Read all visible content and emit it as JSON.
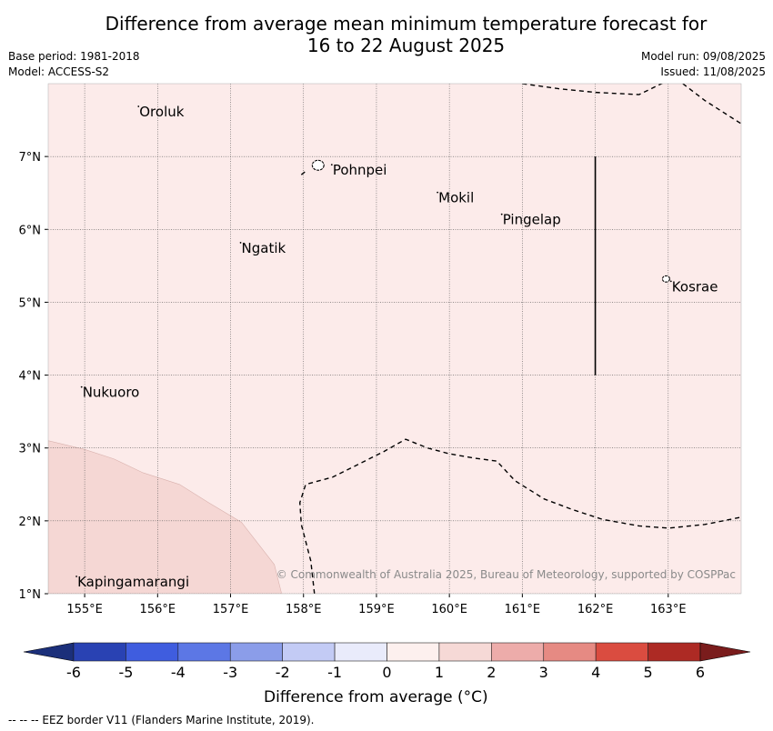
{
  "title_lines": [
    "Difference from average mean minimum temperature forecast for",
    "16 to 22 August 2025"
  ],
  "meta_left": [
    "Base period: 1981-2018",
    "Model: ACCESS-S2"
  ],
  "meta_right": [
    "Model run: 09/08/2025",
    "Issued: 11/08/2025"
  ],
  "copyright": "© Commonwealth of Australia 2025, Bureau of Meteorology, supported by COSPPac",
  "footer": "--  --  -- EEZ border V11 (Flanders Marine Institute, 2019).",
  "map": {
    "lon_range": [
      154.5,
      164.0
    ],
    "lat_range": [
      1.0,
      8.0
    ],
    "lon_ticks": [
      {
        "v": 155,
        "label": "155°E"
      },
      {
        "v": 156,
        "label": "156°E"
      },
      {
        "v": 157,
        "label": "157°E"
      },
      {
        "v": 158,
        "label": "158°E"
      },
      {
        "v": 159,
        "label": "159°E"
      },
      {
        "v": 160,
        "label": "160°E"
      },
      {
        "v": 161,
        "label": "161°E"
      },
      {
        "v": 162,
        "label": "162°E"
      },
      {
        "v": 163,
        "label": "163°E"
      }
    ],
    "lat_ticks": [
      {
        "v": 1,
        "label": "1°N"
      },
      {
        "v": 2,
        "label": "2°N"
      },
      {
        "v": 3,
        "label": "3°N"
      },
      {
        "v": 4,
        "label": "4°N"
      },
      {
        "v": 5,
        "label": "5°N"
      },
      {
        "v": 6,
        "label": "6°N"
      },
      {
        "v": 7,
        "label": "7°N"
      }
    ],
    "background_color": "#fcebea",
    "warm_region_color": "#f5d7d4",
    "warm_region_polygon": [
      [
        154.5,
        3.1
      ],
      [
        155.0,
        2.98
      ],
      [
        155.4,
        2.85
      ],
      [
        155.8,
        2.66
      ],
      [
        156.3,
        2.5
      ],
      [
        156.7,
        2.25
      ],
      [
        157.15,
        1.98
      ],
      [
        157.6,
        1.4
      ],
      [
        157.7,
        1.0
      ],
      [
        154.5,
        1.0
      ]
    ],
    "places": [
      {
        "name": "Oroluk",
        "lon": 155.75,
        "lat": 7.6
      },
      {
        "name": "Pohnpei",
        "lon": 158.4,
        "lat": 6.8
      },
      {
        "name": "Mokil",
        "lon": 159.85,
        "lat": 6.42
      },
      {
        "name": "Pingelap",
        "lon": 160.73,
        "lat": 6.12
      },
      {
        "name": "Ngatik",
        "lon": 157.15,
        "lat": 5.73
      },
      {
        "name": "Kosrae",
        "lon": 163.05,
        "lat": 5.2
      },
      {
        "name": "Nukuoro",
        "lon": 154.97,
        "lat": 3.75
      },
      {
        "name": "Kapingamarangi",
        "lon": 154.9,
        "lat": 1.15
      }
    ],
    "islands": [
      {
        "name": "Pohnpei",
        "lon": 158.2,
        "lat": 6.88,
        "r": 0.08
      },
      {
        "name": "Kosrae",
        "lon": 162.97,
        "lat": 5.32,
        "r": 0.05
      }
    ],
    "solid_boundary": [
      [
        162.0,
        7.0
      ],
      [
        162.0,
        4.0
      ]
    ],
    "eez_lines": [
      [
        [
          161.0,
          8.0
        ],
        [
          161.5,
          7.93
        ],
        [
          162.0,
          7.88
        ],
        [
          162.6,
          7.85
        ],
        [
          162.95,
          8.02
        ]
      ],
      [
        [
          163.2,
          8.0
        ],
        [
          163.5,
          7.77
        ],
        [
          164.0,
          7.45
        ]
      ],
      [
        [
          157.97,
          6.75
        ],
        [
          158.02,
          6.79
        ]
      ],
      [
        [
          158.15,
          1.0
        ],
        [
          158.1,
          1.45
        ],
        [
          157.97,
          1.95
        ],
        [
          157.95,
          2.25
        ],
        [
          158.03,
          2.5
        ],
        [
          158.4,
          2.6
        ],
        [
          158.8,
          2.8
        ],
        [
          159.1,
          2.95
        ],
        [
          159.4,
          3.12
        ],
        [
          159.7,
          3.0
        ],
        [
          160.0,
          2.92
        ],
        [
          160.35,
          2.86
        ],
        [
          160.65,
          2.82
        ],
        [
          160.9,
          2.55
        ],
        [
          161.3,
          2.3
        ],
        [
          161.7,
          2.15
        ],
        [
          162.1,
          2.02
        ],
        [
          162.6,
          1.93
        ],
        [
          163.0,
          1.9
        ],
        [
          163.5,
          1.95
        ],
        [
          164.0,
          2.05
        ]
      ]
    ]
  },
  "colorbar": {
    "title": "Difference from average (°C)",
    "ticks": [
      "-6",
      "-5",
      "-4",
      "-3",
      "-2",
      "-1",
      "0",
      "1",
      "2",
      "3",
      "4",
      "5",
      "6"
    ],
    "under_color": "#1b2f7a",
    "over_color": "#7a1c1c",
    "colors": [
      "#2942b3",
      "#3f5ddf",
      "#5c77e5",
      "#8b9de9",
      "#c3cbf5",
      "#e9ebfb",
      "#fdf0ee",
      "#f6d9d6",
      "#edacaa",
      "#e68a83",
      "#da4c40",
      "#ad2a24"
    ]
  }
}
